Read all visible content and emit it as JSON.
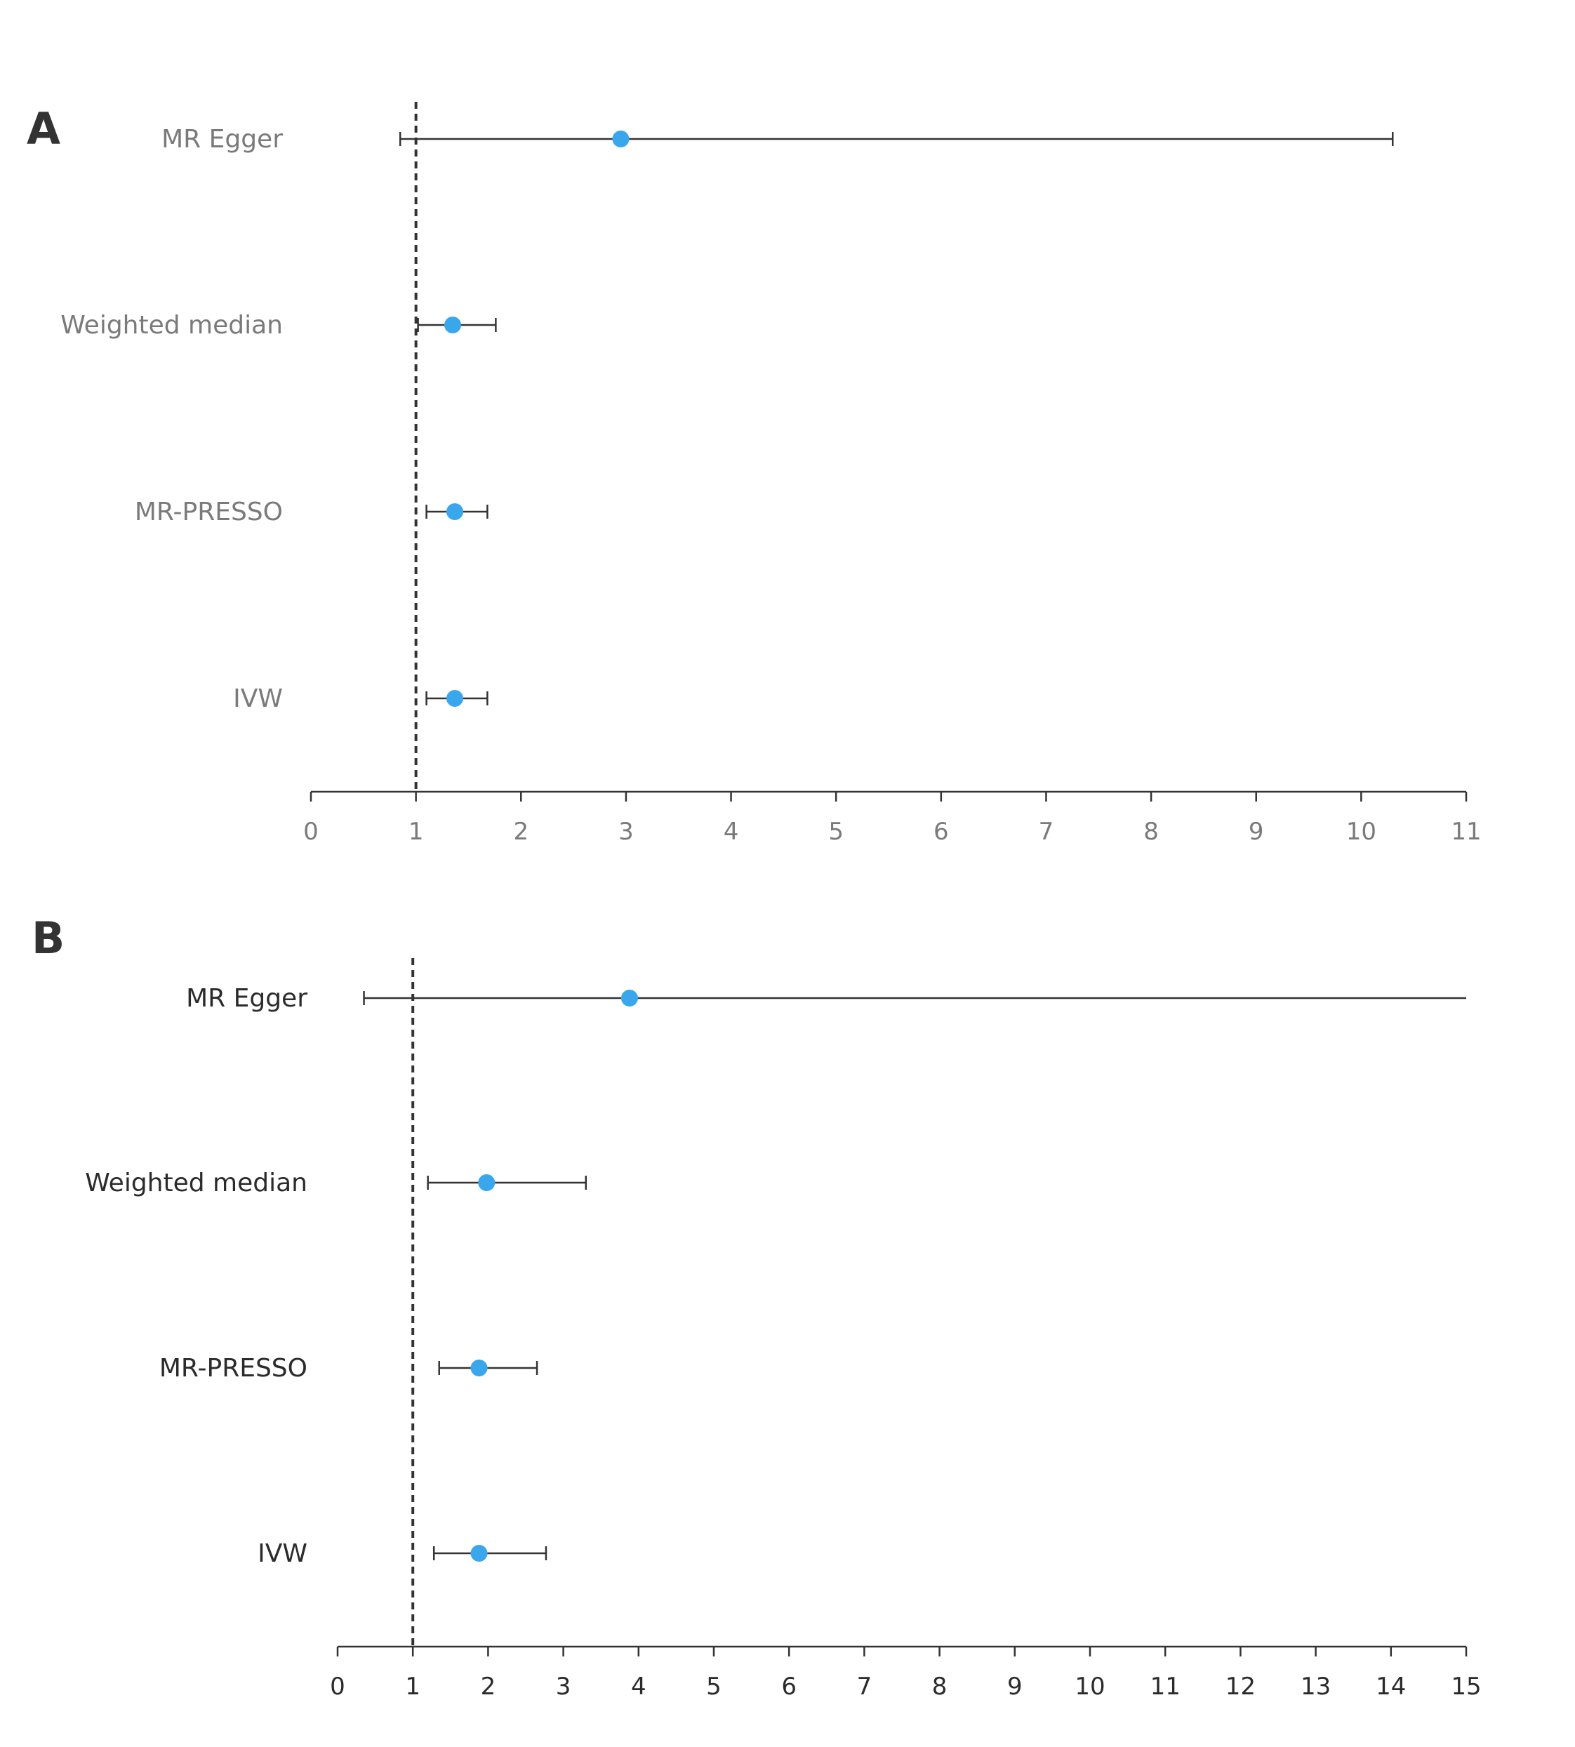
{
  "colors": {
    "point": "#3AA7EC",
    "line": "#333333",
    "panel_A_text": "#7a7a7a",
    "panel_B_text": "#2b2b2b"
  },
  "chart_data": [
    {
      "panel": "A",
      "type": "scatter",
      "title": "",
      "xlabel": "",
      "ylabel": "",
      "xlim": [
        0,
        11
      ],
      "ticks": [
        "0",
        "1",
        "2",
        "3",
        "4",
        "5",
        "6",
        "7",
        "8",
        "9",
        "10",
        "11"
      ],
      "reference_line": 1,
      "grid": false,
      "rows": [
        {
          "label": "MR Egger",
          "estimate": 2.95,
          "lower": 0.85,
          "upper": 10.3
        },
        {
          "label": "Weighted median",
          "estimate": 1.35,
          "lower": 1.02,
          "upper": 1.76
        },
        {
          "label": "MR-PRESSO",
          "estimate": 1.37,
          "lower": 1.1,
          "upper": 1.68
        },
        {
          "label": "IVW",
          "estimate": 1.37,
          "lower": 1.1,
          "upper": 1.68
        }
      ]
    },
    {
      "panel": "B",
      "type": "scatter",
      "title": "",
      "xlabel": "",
      "ylabel": "",
      "xlim": [
        0,
        15
      ],
      "ticks": [
        "0",
        "1",
        "2",
        "3",
        "4",
        "5",
        "6",
        "7",
        "8",
        "9",
        "10",
        "11",
        "12",
        "13",
        "14",
        "15"
      ],
      "reference_line": 1,
      "grid": false,
      "rows": [
        {
          "label": "MR Egger",
          "estimate": 3.88,
          "lower": 0.35,
          "upper": 15,
          "upper_truncated": true
        },
        {
          "label": "Weighted median",
          "estimate": 1.98,
          "lower": 1.2,
          "upper": 3.3
        },
        {
          "label": "MR-PRESSO",
          "estimate": 1.88,
          "lower": 1.35,
          "upper": 2.65
        },
        {
          "label": "IVW",
          "estimate": 1.88,
          "lower": 1.28,
          "upper": 2.77
        }
      ]
    }
  ]
}
